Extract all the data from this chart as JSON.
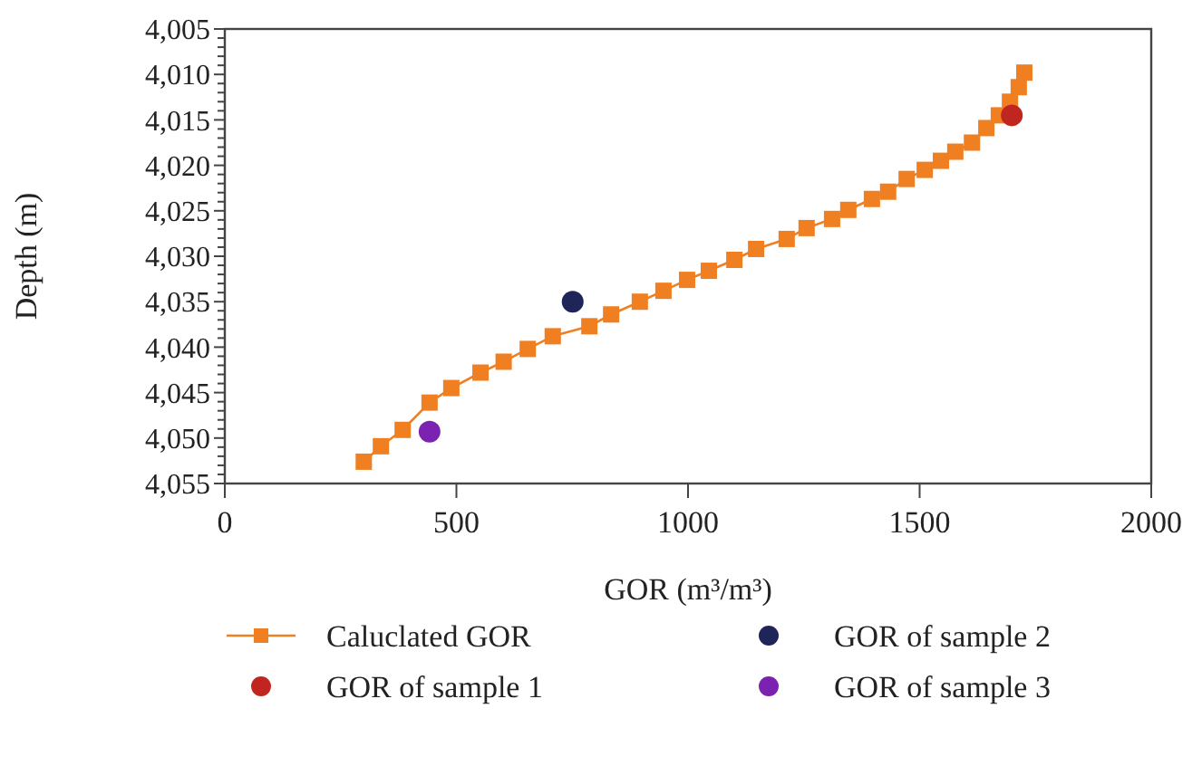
{
  "chart_data": {
    "type": "line",
    "xlabel": "GOR (m³/m³)",
    "ylabel": "Depth (m)",
    "xlim": [
      0,
      2000
    ],
    "xticks": [
      0,
      500,
      1000,
      1500,
      2000
    ],
    "ylim": [
      4055,
      4005
    ],
    "yticks": [
      {
        "value": 4005,
        "label": "4,005"
      },
      {
        "value": 4006,
        "label": null
      },
      {
        "value": 4007,
        "label": null
      },
      {
        "value": 4008,
        "label": null
      },
      {
        "value": 4009,
        "label": null
      },
      {
        "value": 4010,
        "label": "4,010"
      },
      {
        "value": 4011,
        "label": null
      },
      {
        "value": 4012,
        "label": null
      },
      {
        "value": 4013,
        "label": null
      },
      {
        "value": 4014,
        "label": null
      },
      {
        "value": 4015,
        "label": "4,015"
      },
      {
        "value": 4016,
        "label": null
      },
      {
        "value": 4017,
        "label": null
      },
      {
        "value": 4018,
        "label": null
      },
      {
        "value": 4019,
        "label": null
      },
      {
        "value": 4020,
        "label": "4,020"
      },
      {
        "value": 4021,
        "label": null
      },
      {
        "value": 4022,
        "label": null
      },
      {
        "value": 4023,
        "label": null
      },
      {
        "value": 4024,
        "label": null
      },
      {
        "value": 4025,
        "label": "4,025"
      },
      {
        "value": 4026,
        "label": null
      },
      {
        "value": 4027,
        "label": null
      },
      {
        "value": 4028,
        "label": null
      },
      {
        "value": 4029,
        "label": null
      },
      {
        "value": 4030,
        "label": "4,030"
      },
      {
        "value": 4031,
        "label": null
      },
      {
        "value": 4032,
        "label": null
      },
      {
        "value": 4033,
        "label": null
      },
      {
        "value": 4034,
        "label": null
      },
      {
        "value": 4035,
        "label": "4,035"
      },
      {
        "value": 4036,
        "label": null
      },
      {
        "value": 4037,
        "label": null
      },
      {
        "value": 4038,
        "label": null
      },
      {
        "value": 4039,
        "label": null
      },
      {
        "value": 4040,
        "label": "4,040"
      },
      {
        "value": 4041,
        "label": null
      },
      {
        "value": 4042,
        "label": null
      },
      {
        "value": 4043,
        "label": null
      },
      {
        "value": 4044,
        "label": null
      },
      {
        "value": 4045,
        "label": "4,045"
      },
      {
        "value": 4046,
        "label": null
      },
      {
        "value": 4047,
        "label": null
      },
      {
        "value": 4048,
        "label": null
      },
      {
        "value": 4049,
        "label": null
      },
      {
        "value": 4050,
        "label": "4,050"
      },
      {
        "value": 4051,
        "label": null
      },
      {
        "value": 4052,
        "label": null
      },
      {
        "value": 4053,
        "label": null
      },
      {
        "value": 4054,
        "label": null
      },
      {
        "value": 4055,
        "label": "4,055"
      }
    ],
    "grid": false,
    "legend": "bottom",
    "series": [
      {
        "name": "Caluclated GOR",
        "marker": "square",
        "line_style": "solid",
        "color": "#f07f22",
        "x": [
          300,
          337,
          384,
          442,
          489,
          552,
          602,
          654,
          708,
          787,
          834,
          896,
          947,
          998,
          1045,
          1100,
          1147,
          1213,
          1256,
          1311,
          1346,
          1397,
          1432,
          1472,
          1511,
          1546,
          1577,
          1613,
          1644,
          1671,
          1695,
          1714,
          1726
        ],
        "values": [
          4052.6,
          4050.9,
          4049.1,
          4046.1,
          4044.5,
          4042.8,
          4041.6,
          4040.2,
          4038.8,
          4037.7,
          4036.4,
          4035.0,
          4033.8,
          4032.6,
          4031.6,
          4030.4,
          4029.2,
          4028.1,
          4026.9,
          4025.9,
          4024.9,
          4023.7,
          4022.9,
          4021.5,
          4020.5,
          4019.5,
          4018.5,
          4017.5,
          4015.9,
          4014.5,
          4013.0,
          4011.4,
          4009.8
        ]
      },
      {
        "name": "GOR of sample 1",
        "type": "scatter",
        "marker": "circle",
        "color": "#c0261f",
        "x": [
          1699
        ],
        "values": [
          4014.5
        ]
      },
      {
        "name": "GOR of sample 2",
        "type": "scatter",
        "marker": "circle",
        "color": "#1f2559",
        "x": [
          751
        ],
        "values": [
          4035.0
        ]
      },
      {
        "name": "GOR of sample 3",
        "type": "scatter",
        "marker": "circle",
        "color": "#7b22b0",
        "x": [
          442
        ],
        "values": [
          4049.3
        ]
      }
    ]
  }
}
